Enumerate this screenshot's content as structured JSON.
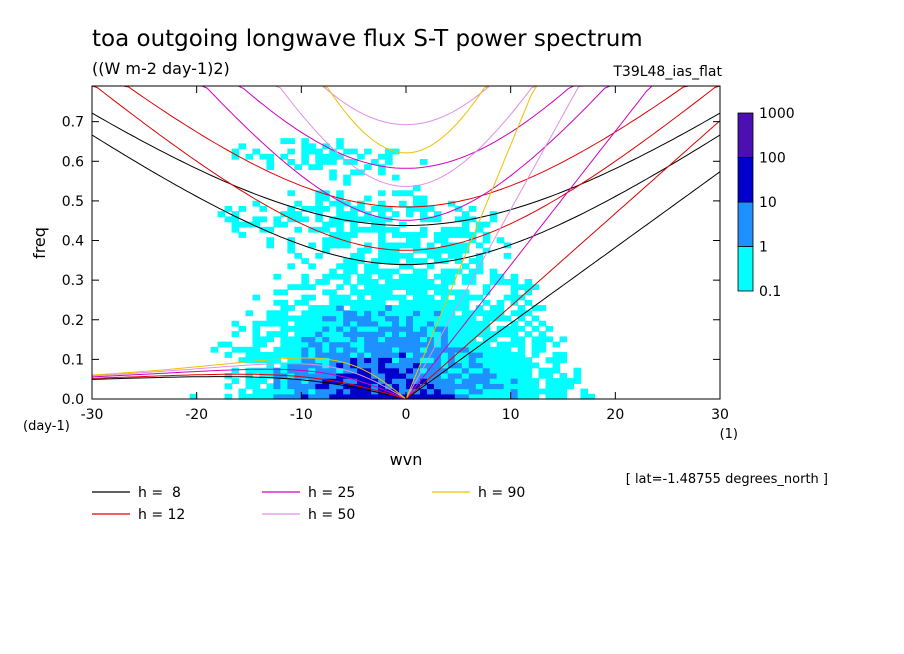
{
  "chart_data": {
    "type": "heatmap",
    "title": "toa outgoing longwave flux S-T power spectrum",
    "units": "((W m-2 day-1)2)",
    "run_label": "T39L48_ias_flat",
    "xlabel": "wvn",
    "ylabel": "freq",
    "x_unit": "(1)",
    "y_unit": "(day-1)",
    "latitude_note": "[ lat=-1.48755 degrees_north ]",
    "xlim": [
      -30,
      30
    ],
    "ylim": [
      0,
      0.79
    ],
    "xticks": [
      "-30",
      "-20",
      "-10",
      "0",
      "10",
      "20",
      "30"
    ],
    "yticks": [
      "0.0",
      "0.1",
      "0.2",
      "0.3",
      "0.4",
      "0.5",
      "0.6",
      "0.7"
    ],
    "colorbar": {
      "labels": [
        "0.1",
        "1",
        "10",
        "100",
        "1000"
      ],
      "colors": [
        "#00ffff",
        "#1e90ff",
        "#0000cd",
        "#4b0fb4"
      ]
    },
    "dispersion_curves": [
      {
        "name": "h =  8",
        "h": 8,
        "color": "#000000"
      },
      {
        "name": "h = 12",
        "h": 12,
        "color": "#e00000"
      },
      {
        "name": "h = 25",
        "h": 25,
        "color": "#d000c0"
      },
      {
        "name": "h = 50",
        "h": 50,
        "color": "#e090e0"
      },
      {
        "name": "h = 90",
        "h": 90,
        "color": "#f0c000"
      }
    ]
  }
}
